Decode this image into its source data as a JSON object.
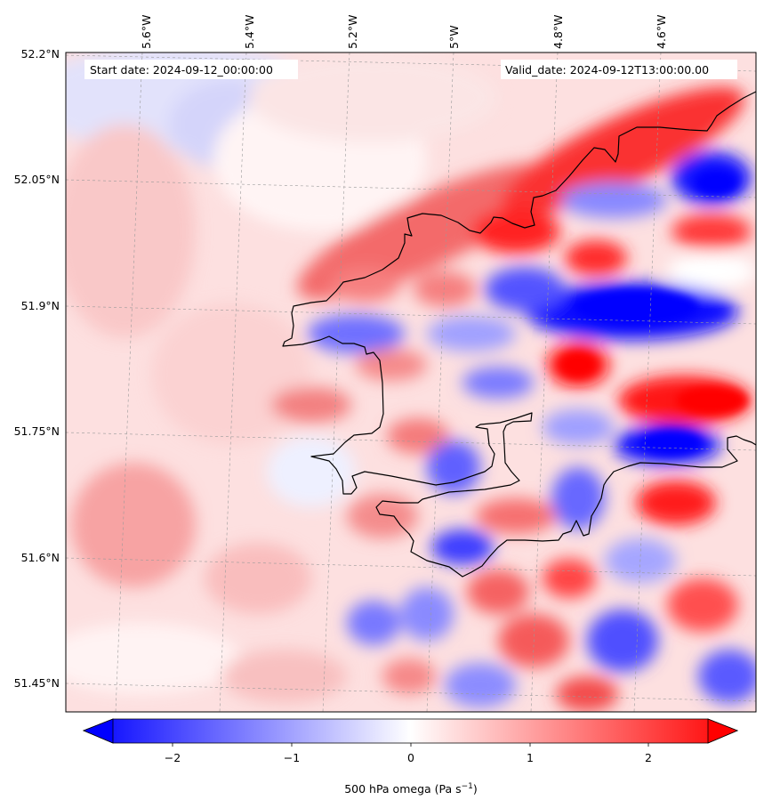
{
  "map": {
    "start_date_label": "Start date: 2024-09-12_00:00:00",
    "valid_date_label": "Valid_date: 2024-09-12T13:00:00.00",
    "lon_labels": [
      "5.6°W",
      "5.4°W",
      "5.2°W",
      "5°W",
      "4.8°W",
      "4.6°W"
    ],
    "lat_labels": [
      "52.2°N",
      "52.05°N",
      "51.9°N",
      "51.75°N",
      "51.6°N",
      "51.45°N"
    ],
    "colorbar": {
      "ticks": [
        "−2",
        "−1",
        "0",
        "1",
        "2"
      ],
      "label_main": "500 hPa omega (Pa s",
      "label_exp": "−1",
      "label_end": ")",
      "vmin": -2.6,
      "vmax": 2.6,
      "cmap": "bwr",
      "color_neg": "#0000ff",
      "color_mid": "#ffffff",
      "color_pos": "#ff0000"
    },
    "gridlines": "dashed-grey",
    "coastline_color": "#000000"
  }
}
